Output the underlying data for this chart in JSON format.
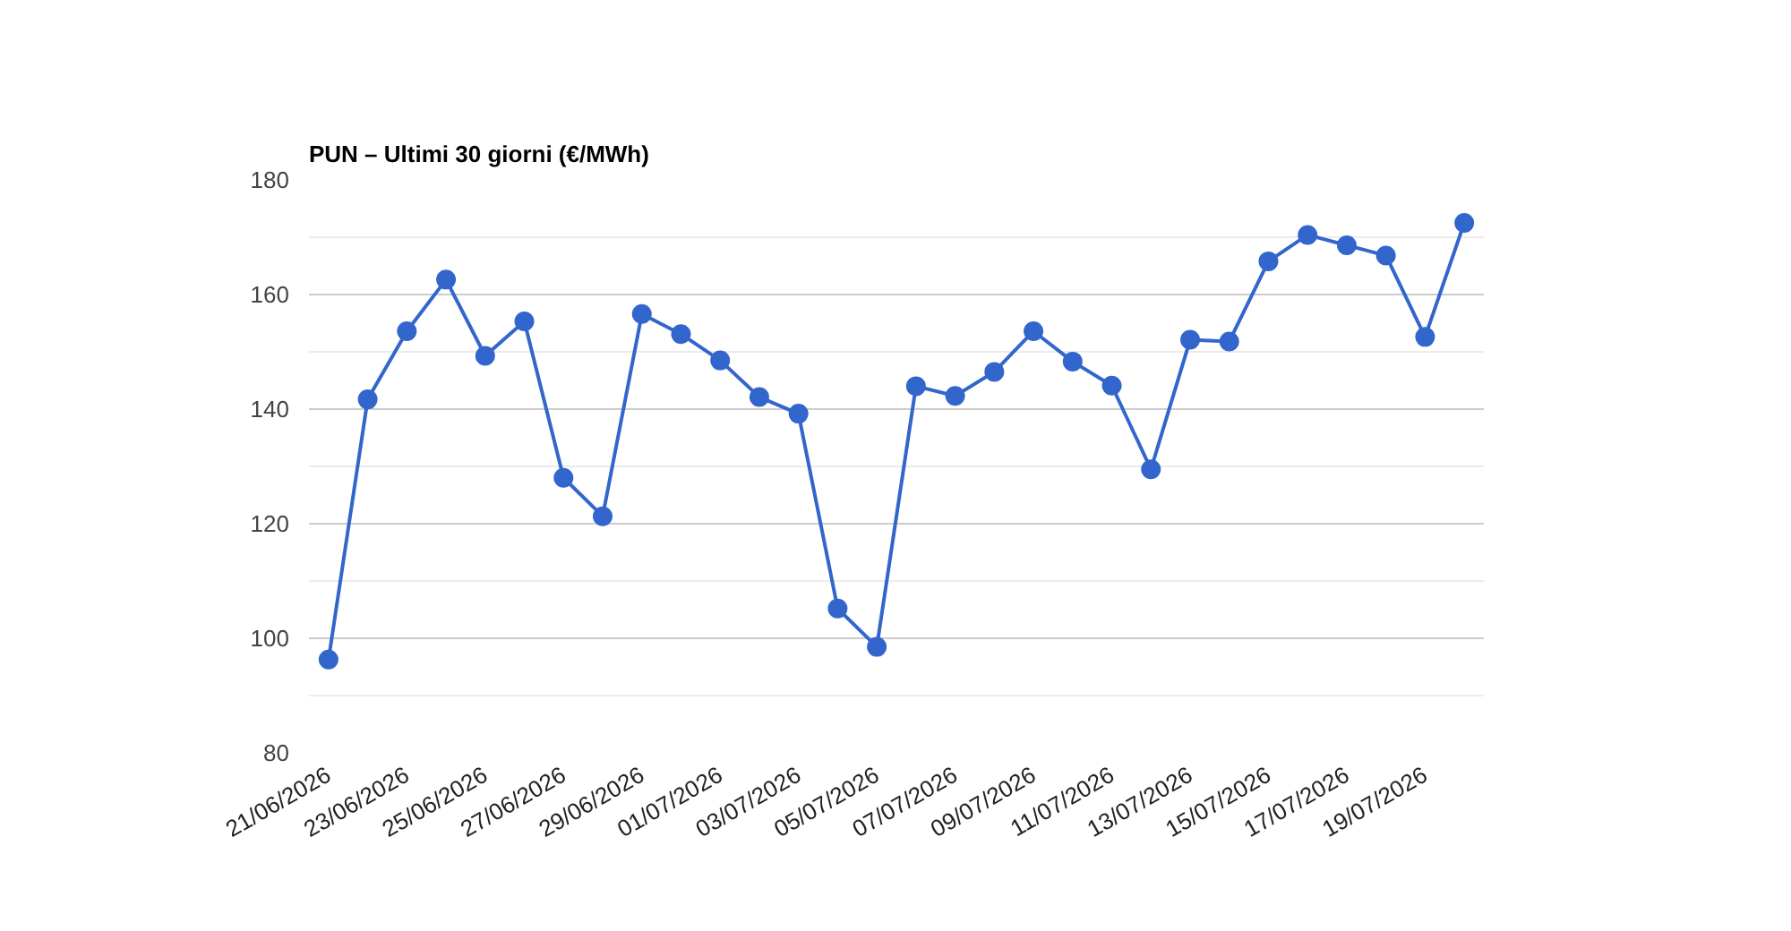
{
  "chart_data": {
    "type": "line",
    "title": "PUN – Ultimi 30 giorni (€/MWh)",
    "categories": [
      "21/06/2026",
      null,
      "23/06/2026",
      null,
      "25/06/2026",
      null,
      "27/06/2026",
      null,
      "29/06/2026",
      null,
      "01/07/2026",
      null,
      "03/07/2026",
      null,
      "05/07/2026",
      null,
      "07/07/2026",
      null,
      "09/07/2026",
      null,
      "11/07/2026",
      null,
      "13/07/2026",
      null,
      "15/07/2026",
      null,
      "17/07/2026",
      null,
      "19/07/2026",
      null
    ],
    "series": [
      {
        "color": "#3366cc",
        "values": [
          96.3,
          141.7,
          153.6,
          162.6,
          149.3,
          155.3,
          128.0,
          121.3,
          156.6,
          153.1,
          148.5,
          142.1,
          139.2,
          105.2,
          98.5,
          144.0,
          142.3,
          146.5,
          153.6,
          148.3,
          144.1,
          129.5,
          152.1,
          151.8,
          165.8,
          170.4,
          168.6,
          166.8,
          152.6,
          172.5
        ]
      }
    ],
    "ylim": [
      80,
      180
    ],
    "yticks": [
      80,
      100,
      120,
      140,
      160,
      180
    ],
    "grid": "y",
    "marker": "circle",
    "line_style": "solid"
  }
}
